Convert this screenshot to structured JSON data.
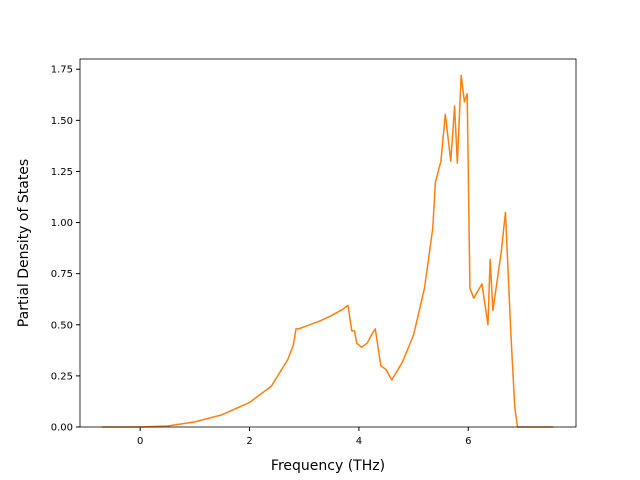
{
  "chart_data": {
    "type": "line",
    "x_label": "Frequency (THz)",
    "y_label": "Partial Density of States",
    "x": [
      -0.7,
      0,
      0.5,
      1,
      1.5,
      2,
      2.4,
      2.7,
      2.8,
      2.85,
      2.9,
      3.0,
      3.1,
      3.3,
      3.5,
      3.7,
      3.8,
      3.87,
      3.92,
      3.96,
      4.05,
      4.15,
      4.25,
      4.3,
      4.4,
      4.5,
      4.6,
      4.8,
      5.0,
      5.2,
      5.35,
      5.4,
      5.5,
      5.58,
      5.68,
      5.75,
      5.8,
      5.87,
      5.93,
      5.98,
      6.03,
      6.1,
      6.25,
      6.36,
      6.4,
      6.45,
      6.6,
      6.68,
      6.78,
      6.85,
      6.9,
      7.55
    ],
    "series": [
      {
        "color": "#ff7f0e",
        "values": [
          0,
          0,
          0.005,
          0.025,
          0.06,
          0.12,
          0.2,
          0.33,
          0.4,
          0.48,
          0.48,
          0.49,
          0.5,
          0.52,
          0.545,
          0.575,
          0.595,
          0.47,
          0.47,
          0.41,
          0.39,
          0.41,
          0.46,
          0.48,
          0.3,
          0.28,
          0.23,
          0.32,
          0.45,
          0.68,
          0.97,
          1.2,
          1.3,
          1.53,
          1.3,
          1.57,
          1.29,
          1.72,
          1.59,
          1.63,
          0.68,
          0.63,
          0.7,
          0.5,
          0.82,
          0.57,
          0.85,
          1.05,
          0.45,
          0.1,
          0,
          0
        ]
      }
    ],
    "xlim": [
      -1.1,
      7.97
    ],
    "ylim": [
      0,
      1.8
    ],
    "xticks": [
      0,
      2,
      4,
      6
    ],
    "yticks": [
      {
        "value": 0,
        "label": "0.00"
      },
      {
        "value": 0.25,
        "label": "0.25"
      },
      {
        "value": 0.5,
        "label": "0.50"
      },
      {
        "value": 0.75,
        "label": "0.75"
      },
      {
        "value": 1,
        "label": "1.00"
      },
      {
        "value": 1.25,
        "label": "1.25"
      },
      {
        "value": 1.5,
        "label": "1.50"
      },
      {
        "value": 1.75,
        "label": "1.75"
      }
    ],
    "grid": false
  }
}
